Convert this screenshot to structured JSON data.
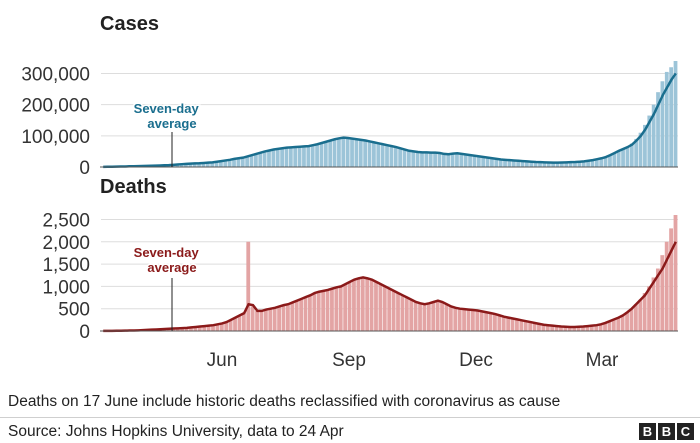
{
  "chart_data": [
    {
      "type": "bar",
      "title": "Cases",
      "annotation": "Seven-day average",
      "x_tick_labels": [
        "Jun",
        "Sep",
        "Dec",
        "Mar"
      ],
      "yticks": [
        0,
        100000,
        200000,
        300000
      ],
      "ytick_labels": [
        "0",
        "100,000",
        "200,000",
        "300,000"
      ],
      "ylim": [
        0,
        340000
      ],
      "series": [
        {
          "type": "bar",
          "values": [
            500,
            700,
            900,
            1200,
            1500,
            1800,
            2200,
            2500,
            2800,
            3200,
            3500,
            4000,
            4500,
            5000,
            5500,
            6000,
            7000,
            8000,
            9000,
            10000,
            11000,
            11500,
            12000,
            13000,
            14000,
            15000,
            17000,
            19000,
            21000,
            23000,
            26000,
            28000,
            30000,
            34000,
            38000,
            42000,
            46000,
            50000,
            53000,
            56000,
            58000,
            60000,
            62000,
            63000,
            64000,
            65000,
            66000,
            67000,
            70000,
            73000,
            77000,
            81000,
            85000,
            89000,
            92000,
            94000,
            93000,
            91000,
            89000,
            87000,
            85000,
            82000,
            79000,
            76000,
            73000,
            70000,
            67000,
            64000,
            60000,
            56000,
            52000,
            50000,
            48000,
            47000,
            47000,
            46000,
            46000,
            45000,
            42000,
            41000,
            43000,
            44000,
            42000,
            40000,
            38000,
            36000,
            34000,
            32000,
            30000,
            28000,
            26000,
            24000,
            23000,
            22000,
            21000,
            20000,
            19000,
            18000,
            17000,
            16000,
            15500,
            15000,
            14500,
            14000,
            14000,
            14500,
            15000,
            15500,
            16000,
            17000,
            18000,
            20000,
            22000,
            25000,
            28000,
            32000,
            38000,
            45000,
            52000,
            58000,
            64000,
            75000,
            90000,
            110000,
            135000,
            165000,
            200000,
            240000,
            275000,
            305000,
            320000,
            340000
          ]
        },
        {
          "type": "line",
          "values": [
            500,
            700,
            900,
            1200,
            1500,
            1800,
            2200,
            2500,
            2800,
            3200,
            3500,
            4000,
            4500,
            5000,
            5500,
            6000,
            7000,
            8000,
            9000,
            10000,
            11000,
            11500,
            12000,
            13000,
            14000,
            15000,
            17000,
            19000,
            21000,
            23000,
            26000,
            28000,
            30000,
            34000,
            38000,
            42000,
            46000,
            50000,
            53000,
            56000,
            58000,
            60000,
            62000,
            63000,
            64000,
            65000,
            66000,
            67000,
            70000,
            73000,
            77000,
            81000,
            85000,
            89000,
            92000,
            94000,
            93000,
            91000,
            89000,
            87000,
            85000,
            82000,
            79000,
            76000,
            73000,
            70000,
            67000,
            64000,
            60000,
            56000,
            52000,
            50000,
            48000,
            47000,
            47000,
            46000,
            46000,
            45000,
            42000,
            41000,
            43000,
            44000,
            42000,
            40000,
            38000,
            36000,
            34000,
            32000,
            30000,
            28000,
            26000,
            24000,
            23000,
            22000,
            21000,
            20000,
            19000,
            18000,
            17000,
            16000,
            15500,
            15000,
            14500,
            14000,
            14000,
            14500,
            15000,
            15500,
            16000,
            17000,
            18000,
            20000,
            22000,
            25000,
            28000,
            32000,
            38000,
            45000,
            52000,
            58000,
            64000,
            72000,
            85000,
            100000,
            120000,
            145000,
            170000,
            200000,
            230000,
            255000,
            280000,
            300000
          ]
        }
      ],
      "colors": {
        "bars": "#9cc4d8",
        "line": "#1a6e8e",
        "axis": "#555555",
        "grid": "#dddddd"
      }
    },
    {
      "type": "bar",
      "title": "Deaths",
      "annotation": "Seven-day average",
      "x_tick_labels": [
        "Jun",
        "Sep",
        "Dec",
        "Mar"
      ],
      "yticks": [
        0,
        500,
        1000,
        1500,
        2000,
        2500
      ],
      "ytick_labels": [
        "0",
        "500",
        "1,000",
        "1,500",
        "2,000",
        "2,500"
      ],
      "ylim": [
        0,
        2600
      ],
      "series": [
        {
          "type": "bar",
          "values": [
            2,
            3,
            4,
            5,
            6,
            8,
            10,
            12,
            15,
            20,
            25,
            30,
            35,
            40,
            45,
            50,
            55,
            60,
            65,
            70,
            80,
            90,
            100,
            110,
            120,
            130,
            150,
            170,
            200,
            250,
            300,
            350,
            400,
            2000,
            550,
            450,
            450,
            480,
            500,
            520,
            550,
            580,
            600,
            640,
            680,
            720,
            760,
            800,
            850,
            880,
            900,
            920,
            950,
            980,
            1000,
            1050,
            1100,
            1150,
            1180,
            1200,
            1180,
            1150,
            1100,
            1050,
            1000,
            950,
            900,
            850,
            800,
            750,
            700,
            650,
            620,
            600,
            620,
            650,
            680,
            650,
            600,
            550,
            520,
            500,
            490,
            480,
            470,
            460,
            440,
            420,
            400,
            380,
            350,
            320,
            300,
            280,
            260,
            240,
            220,
            200,
            180,
            160,
            140,
            130,
            120,
            110,
            100,
            95,
            90,
            90,
            95,
            100,
            110,
            120,
            130,
            150,
            180,
            220,
            260,
            300,
            350,
            420,
            500,
            600,
            700,
            850,
            1000,
            1200,
            1400,
            1700,
            2000,
            2300,
            2600
          ]
        },
        {
          "type": "line",
          "values": [
            2,
            3,
            4,
            5,
            6,
            8,
            10,
            12,
            15,
            20,
            25,
            30,
            35,
            40,
            45,
            50,
            55,
            60,
            65,
            70,
            80,
            90,
            100,
            110,
            120,
            130,
            150,
            170,
            200,
            250,
            300,
            350,
            400,
            600,
            580,
            450,
            450,
            480,
            500,
            520,
            550,
            580,
            600,
            640,
            680,
            720,
            760,
            800,
            850,
            880,
            900,
            920,
            950,
            980,
            1000,
            1050,
            1100,
            1150,
            1180,
            1200,
            1180,
            1150,
            1100,
            1050,
            1000,
            950,
            900,
            850,
            800,
            750,
            700,
            650,
            620,
            600,
            620,
            650,
            680,
            650,
            600,
            550,
            520,
            500,
            490,
            480,
            470,
            460,
            440,
            420,
            400,
            380,
            350,
            320,
            300,
            280,
            260,
            240,
            220,
            200,
            180,
            160,
            140,
            130,
            120,
            110,
            100,
            95,
            90,
            90,
            95,
            100,
            110,
            120,
            130,
            150,
            180,
            220,
            260,
            300,
            350,
            420,
            500,
            600,
            700,
            800,
            950,
            1100,
            1250,
            1400,
            1600,
            1800,
            2000
          ]
        }
      ],
      "colors": {
        "bars": "#e3a4a4",
        "line": "#8b1a1a",
        "axis": "#555555",
        "grid": "#dddddd"
      }
    }
  ],
  "footer": {
    "note": "Deaths on 17 June include historic deaths reclassified with coronavirus as cause",
    "source": "Source: Johns Hopkins University, data to 24 Apr",
    "logo": [
      "B",
      "B",
      "C"
    ]
  }
}
